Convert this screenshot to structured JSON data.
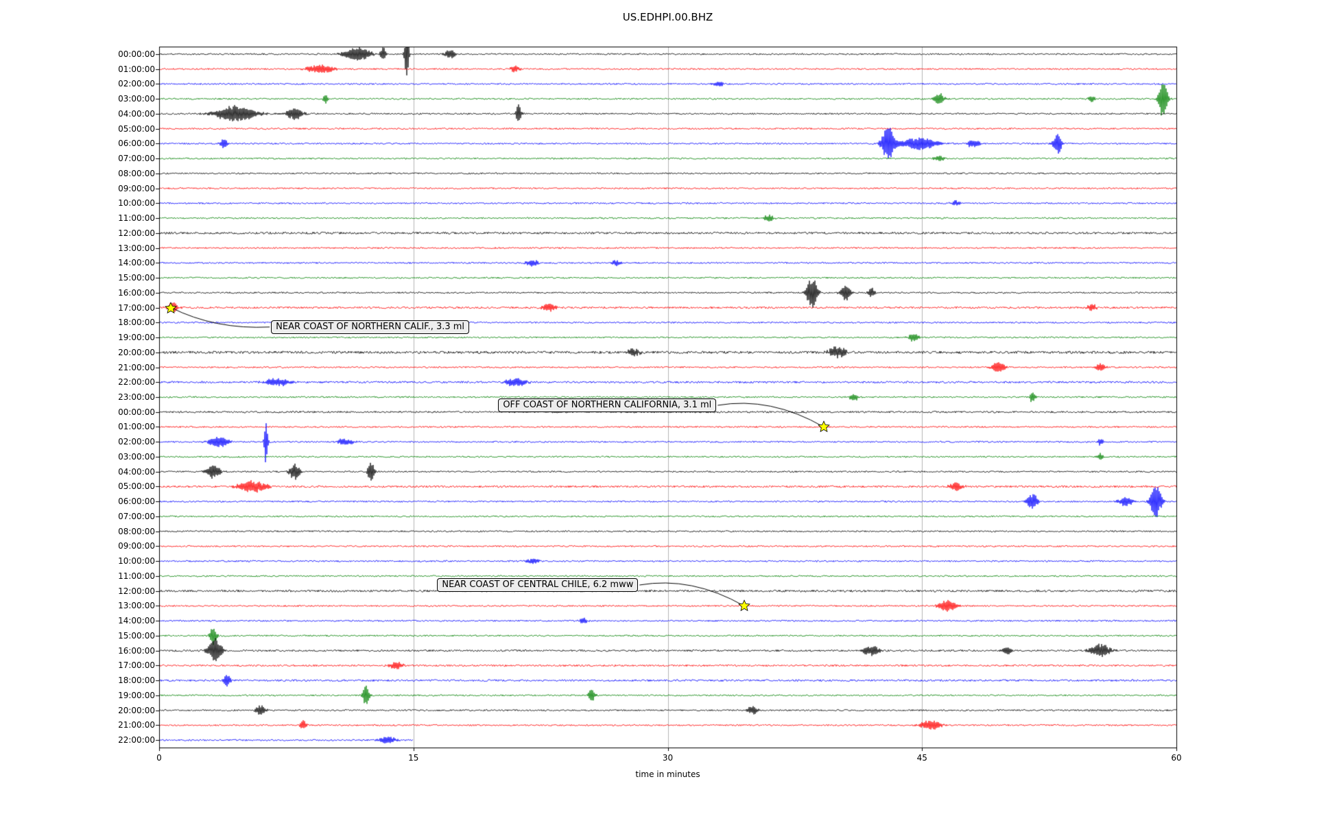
{
  "title": "US.EDHPI.00.BHZ",
  "chart_data": {
    "type": "line",
    "subtype": "helicorder-dayplot",
    "title": "US.EDHPI.00.BHZ",
    "xlabel": "time in minutes",
    "xlim": [
      0,
      60
    ],
    "x_ticks": [
      "0",
      "15",
      "30",
      "45",
      "60"
    ],
    "grid": "vertical-only",
    "row_duration_minutes": 60,
    "color_cycle": [
      "#000000",
      "#ff0000",
      "#0000ff",
      "#008000"
    ],
    "rows": [
      {
        "label": "00:00:00",
        "spikes": [
          {
            "x": 11.7,
            "a": 0.9,
            "w": 0.8
          },
          {
            "x": 13.2,
            "a": 1.1,
            "w": 0.15
          },
          {
            "x": 14.6,
            "a": 3.6,
            "w": 0.12
          },
          {
            "x": 17.2,
            "a": 0.7,
            "w": 0.3
          }
        ]
      },
      {
        "label": "01:00:00",
        "spikes": [
          {
            "x": 9.5,
            "a": 0.6,
            "w": 0.8
          },
          {
            "x": 21,
            "a": 0.4,
            "w": 0.3
          }
        ]
      },
      {
        "label": "02:00:00",
        "spikes": [
          {
            "x": 33,
            "a": 0.35,
            "w": 0.3
          }
        ]
      },
      {
        "label": "03:00:00",
        "spikes": [
          {
            "x": 9.8,
            "a": 0.7,
            "w": 0.15
          },
          {
            "x": 46,
            "a": 0.8,
            "w": 0.3
          },
          {
            "x": 55,
            "a": 0.5,
            "w": 0.2
          },
          {
            "x": 59.2,
            "a": 3.0,
            "w": 0.25
          }
        ]
      },
      {
        "label": "04:00:00",
        "spikes": [
          {
            "x": 4.5,
            "a": 1.1,
            "w": 1.2
          },
          {
            "x": 8,
            "a": 0.8,
            "w": 0.5
          },
          {
            "x": 21.2,
            "a": 1.4,
            "w": 0.15
          }
        ]
      },
      {
        "label": "05:00:00"
      },
      {
        "label": "06:00:00",
        "spikes": [
          {
            "x": 3.8,
            "a": 0.7,
            "w": 0.2
          },
          {
            "x": 43,
            "a": 2.6,
            "w": 0.35
          },
          {
            "x": 44.8,
            "a": 0.9,
            "w": 1.0
          },
          {
            "x": 48,
            "a": 0.5,
            "w": 0.4
          },
          {
            "x": 53,
            "a": 1.3,
            "w": 0.25
          }
        ]
      },
      {
        "label": "07:00:00",
        "spikes": [
          {
            "x": 46,
            "a": 0.4,
            "w": 0.3
          }
        ]
      },
      {
        "label": "08:00:00"
      },
      {
        "label": "09:00:00"
      },
      {
        "label": "10:00:00",
        "spikes": [
          {
            "x": 47,
            "a": 0.35,
            "w": 0.3
          }
        ]
      },
      {
        "label": "11:00:00",
        "spikes": [
          {
            "x": 36,
            "a": 0.5,
            "w": 0.3
          }
        ]
      },
      {
        "label": "12:00:00",
        "amp": 1.5
      },
      {
        "label": "13:00:00"
      },
      {
        "label": "14:00:00",
        "spikes": [
          {
            "x": 22,
            "a": 0.45,
            "w": 0.4
          },
          {
            "x": 27,
            "a": 0.4,
            "w": 0.3
          }
        ]
      },
      {
        "label": "15:00:00"
      },
      {
        "label": "16:00:00",
        "spikes": [
          {
            "x": 38.5,
            "a": 2.2,
            "w": 0.3
          },
          {
            "x": 40.5,
            "a": 1.1,
            "w": 0.3
          },
          {
            "x": 42,
            "a": 0.7,
            "w": 0.2
          }
        ]
      },
      {
        "label": "17:00:00",
        "amp": 1.4,
        "spikes": [
          {
            "x": 0.8,
            "a": 0.7,
            "w": 0.3
          },
          {
            "x": 23,
            "a": 0.5,
            "w": 0.4
          },
          {
            "x": 55,
            "a": 0.5,
            "w": 0.3
          }
        ]
      },
      {
        "label": "18:00:00"
      },
      {
        "label": "19:00:00",
        "spikes": [
          {
            "x": 44.5,
            "a": 0.6,
            "w": 0.3
          }
        ]
      },
      {
        "label": "20:00:00",
        "amp": 1.8,
        "spikes": [
          {
            "x": 28,
            "a": 0.5,
            "w": 0.4
          },
          {
            "x": 40,
            "a": 0.8,
            "w": 0.5
          }
        ]
      },
      {
        "label": "21:00:00",
        "spikes": [
          {
            "x": 49.5,
            "a": 0.7,
            "w": 0.4
          },
          {
            "x": 55.5,
            "a": 0.5,
            "w": 0.3
          }
        ]
      },
      {
        "label": "22:00:00",
        "amp": 1.4,
        "spikes": [
          {
            "x": 7,
            "a": 0.5,
            "w": 0.8
          },
          {
            "x": 21,
            "a": 0.6,
            "w": 0.6
          }
        ]
      },
      {
        "label": "23:00:00",
        "spikes": [
          {
            "x": 41,
            "a": 0.45,
            "w": 0.3
          },
          {
            "x": 51.5,
            "a": 0.9,
            "w": 0.15
          }
        ]
      },
      {
        "label": "00:00:00",
        "amp": 1.3
      },
      {
        "label": "01:00:00"
      },
      {
        "label": "02:00:00",
        "spikes": [
          {
            "x": 3.5,
            "a": 0.7,
            "w": 0.6
          },
          {
            "x": 6.3,
            "a": 3.4,
            "w": 0.1
          },
          {
            "x": 11,
            "a": 0.5,
            "w": 0.5
          },
          {
            "x": 55.5,
            "a": 0.5,
            "w": 0.2
          }
        ]
      },
      {
        "label": "03:00:00",
        "spikes": [
          {
            "x": 55.5,
            "a": 0.45,
            "w": 0.2
          }
        ]
      },
      {
        "label": "04:00:00",
        "spikes": [
          {
            "x": 3.2,
            "a": 1.0,
            "w": 0.4
          },
          {
            "x": 8,
            "a": 1.2,
            "w": 0.3
          },
          {
            "x": 12.5,
            "a": 1.5,
            "w": 0.2
          }
        ]
      },
      {
        "label": "05:00:00",
        "amp": 1.4,
        "spikes": [
          {
            "x": 5.5,
            "a": 0.8,
            "w": 0.8
          },
          {
            "x": 47,
            "a": 0.6,
            "w": 0.4
          }
        ]
      },
      {
        "label": "06:00:00",
        "spikes": [
          {
            "x": 51.5,
            "a": 1.1,
            "w": 0.3
          },
          {
            "x": 57,
            "a": 0.7,
            "w": 0.4
          },
          {
            "x": 58.8,
            "a": 2.4,
            "w": 0.3
          }
        ]
      },
      {
        "label": "07:00:00"
      },
      {
        "label": "08:00:00"
      },
      {
        "label": "09:00:00"
      },
      {
        "label": "10:00:00",
        "spikes": [
          {
            "x": 22,
            "a": 0.35,
            "w": 0.4
          }
        ]
      },
      {
        "label": "11:00:00"
      },
      {
        "label": "12:00:00",
        "amp": 1.5
      },
      {
        "label": "13:00:00",
        "spikes": [
          {
            "x": 46.5,
            "a": 0.8,
            "w": 0.5
          }
        ]
      },
      {
        "label": "14:00:00",
        "spikes": [
          {
            "x": 25,
            "a": 0.4,
            "w": 0.3
          }
        ]
      },
      {
        "label": "15:00:00",
        "spikes": [
          {
            "x": 3.2,
            "a": 1.3,
            "w": 0.2
          }
        ]
      },
      {
        "label": "16:00:00",
        "amp": 1.3,
        "spikes": [
          {
            "x": 3.3,
            "a": 1.7,
            "w": 0.4
          },
          {
            "x": 42,
            "a": 0.7,
            "w": 0.5
          },
          {
            "x": 50,
            "a": 0.5,
            "w": 0.3
          },
          {
            "x": 55.5,
            "a": 0.9,
            "w": 0.6
          }
        ]
      },
      {
        "label": "17:00:00",
        "amp": 1.3,
        "spikes": [
          {
            "x": 14,
            "a": 0.5,
            "w": 0.4
          }
        ]
      },
      {
        "label": "18:00:00",
        "amp": 1.4,
        "spikes": [
          {
            "x": 4,
            "a": 0.9,
            "w": 0.2
          }
        ]
      },
      {
        "label": "19:00:00",
        "spikes": [
          {
            "x": 12.2,
            "a": 1.4,
            "w": 0.2
          },
          {
            "x": 25.5,
            "a": 0.9,
            "w": 0.2
          }
        ]
      },
      {
        "label": "20:00:00",
        "spikes": [
          {
            "x": 6,
            "a": 0.7,
            "w": 0.3
          },
          {
            "x": 35,
            "a": 0.6,
            "w": 0.3
          }
        ]
      },
      {
        "label": "21:00:00",
        "spikes": [
          {
            "x": 8.5,
            "a": 0.6,
            "w": 0.2
          },
          {
            "x": 45.5,
            "a": 0.7,
            "w": 0.6
          }
        ]
      },
      {
        "label": "22:00:00",
        "end": 15,
        "spikes": [
          {
            "x": 13.5,
            "a": 0.5,
            "w": 0.5
          }
        ]
      }
    ],
    "events": [
      {
        "label": "NEAR COAST OF NORTHERN CALIF., 3.3 ml",
        "star": {
          "row": 17.5,
          "x": 0.7
        },
        "box": {
          "row": 18.8,
          "x": 6.6
        },
        "marker_color": "#ffff00"
      },
      {
        "label": "OFF COAST OF NORTHERN CALIFORNIA, 3.1 ml",
        "star": {
          "row": 25.5,
          "x": 39.2
        },
        "box": {
          "row": 24.05,
          "x": 20.0
        },
        "marker_color": "#ffff00"
      },
      {
        "label": "NEAR COAST OF CENTRAL CHILE, 6.2 mww",
        "star": {
          "row": 37.5,
          "x": 34.5
        },
        "box": {
          "row": 36.1,
          "x": 16.4
        },
        "marker_color": "#ffff00"
      }
    ]
  }
}
